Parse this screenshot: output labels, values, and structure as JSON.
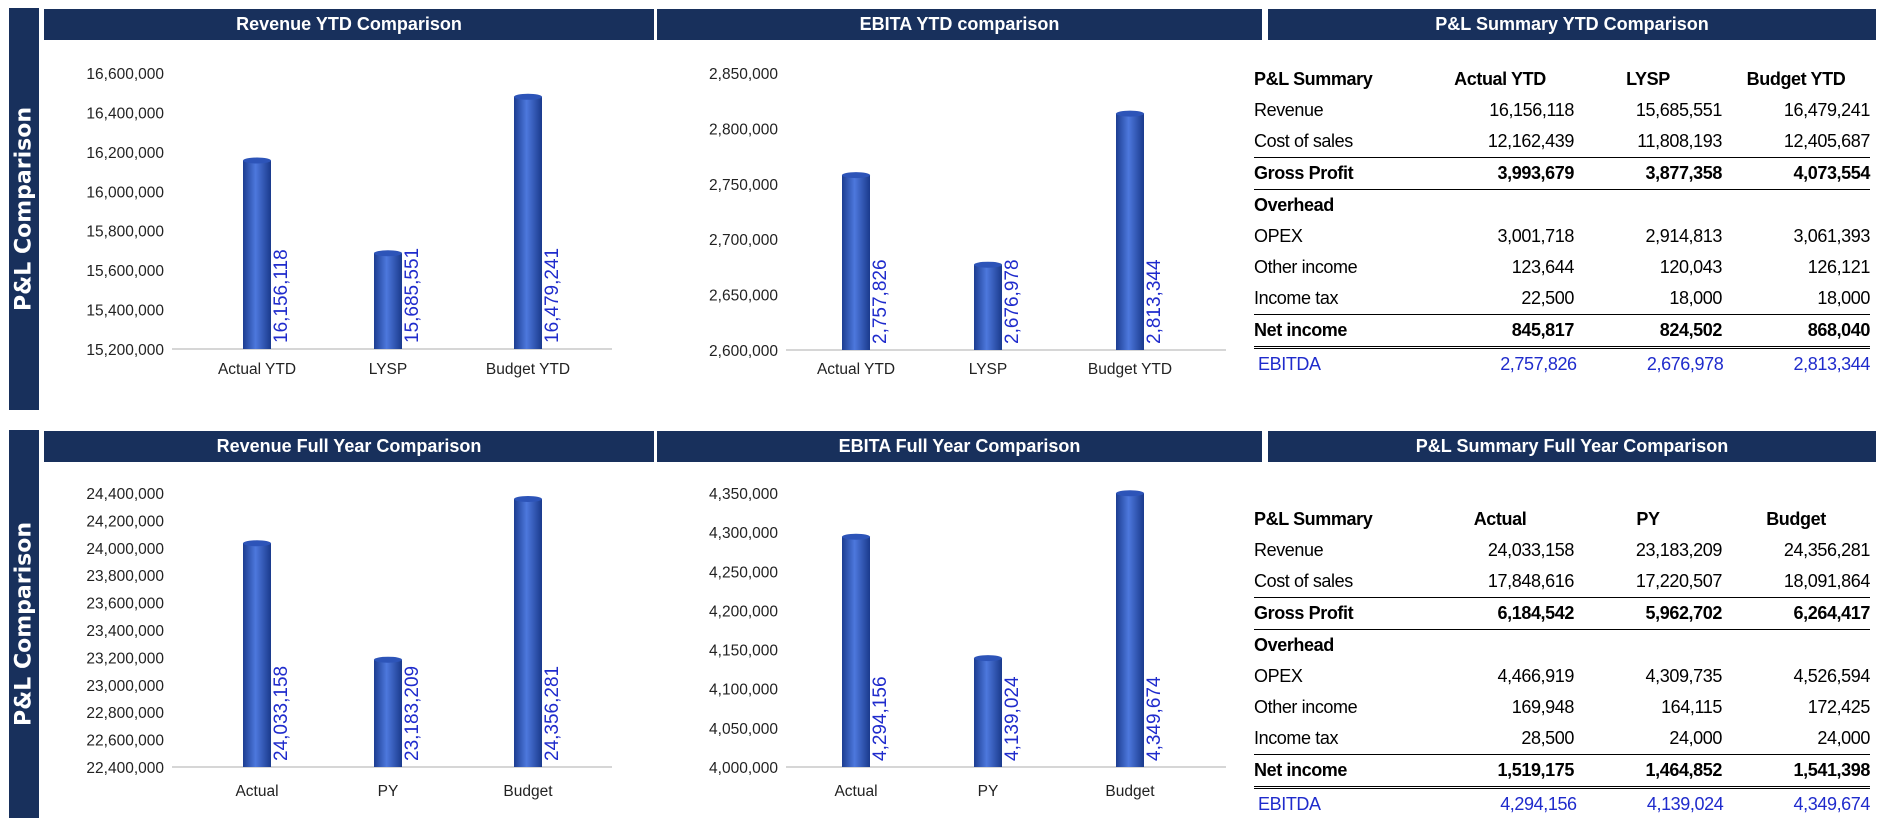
{
  "side_labels": [
    "P&L Comparison",
    "P&L Comparison"
  ],
  "colors": {
    "header_bg": "#18305c",
    "bar": "#3a62c7",
    "bar_label": "#1f2bcc",
    "ebitda_row": "#1f2bcc"
  },
  "headers": {
    "rev_ytd": "Revenue YTD Comparison",
    "ebita_ytd": "EBITA YTD comparison",
    "pl_ytd": "P&L Summary  YTD Comparison",
    "rev_fy": "Revenue Full Year Comparison",
    "ebita_fy": "EBITA Full Year Comparison",
    "pl_fy": "P&L Summary  Full Year Comparison"
  },
  "chart_data": [
    {
      "type": "bar",
      "title": "Revenue YTD Comparison",
      "categories": [
        "Actual YTD",
        "LYSP",
        "Budget YTD"
      ],
      "values": [
        16156118,
        15685551,
        16479241
      ],
      "labels": [
        "16,156,118",
        "15,685,551",
        "16,479,241"
      ],
      "ylim": [
        15200000,
        16600000
      ],
      "yticks": [
        "15,200,000",
        "15,400,000",
        "15,600,000",
        "15,800,000",
        "16,000,000",
        "16,200,000",
        "16,400,000",
        "16,600,000"
      ],
      "grid": false
    },
    {
      "type": "bar",
      "title": "EBITA YTD comparison",
      "categories": [
        "Actual YTD",
        "LYSP",
        "Budget YTD"
      ],
      "values": [
        2757826,
        2676978,
        2813344
      ],
      "labels": [
        "2,757,826",
        "2,676,978",
        "2,813,344"
      ],
      "ylim": [
        2600000,
        2850000
      ],
      "yticks": [
        "2,600,000",
        "2,650,000",
        "2,700,000",
        "2,750,000",
        "2,800,000",
        "2,850,000"
      ],
      "grid": false
    },
    {
      "type": "bar",
      "title": "Revenue Full Year Comparison",
      "categories": [
        "Actual",
        "PY",
        "Budget"
      ],
      "values": [
        24033158,
        23183209,
        24356281
      ],
      "labels": [
        "24,033,158",
        "23,183,209",
        "24,356,281"
      ],
      "ylim": [
        22400000,
        24400000
      ],
      "yticks": [
        "22,400,000",
        "22,600,000",
        "22,800,000",
        "23,000,000",
        "23,200,000",
        "23,400,000",
        "23,600,000",
        "23,800,000",
        "24,000,000",
        "24,200,000",
        "24,400,000"
      ],
      "grid": false
    },
    {
      "type": "bar",
      "title": "EBITA Full Year Comparison",
      "categories": [
        "Actual",
        "PY",
        "Budget"
      ],
      "values": [
        4294156,
        4139024,
        4349674
      ],
      "labels": [
        "4,294,156",
        "4,139,024",
        "4,349,674"
      ],
      "ylim": [
        4000000,
        4350000
      ],
      "yticks": [
        "4,000,000",
        "4,050,000",
        "4,100,000",
        "4,150,000",
        "4,200,000",
        "4,250,000",
        "4,300,000",
        "4,350,000"
      ],
      "grid": false
    }
  ],
  "pl_ytd": {
    "columns": [
      "P&L Summary",
      "Actual YTD",
      "LYSP",
      "Budget YTD"
    ],
    "rows": [
      {
        "label": "Revenue",
        "values": [
          "16,156,118",
          "15,685,551",
          "16,479,241"
        ],
        "style": ""
      },
      {
        "label": "Cost of sales",
        "values": [
          "12,162,439",
          "11,808,193",
          "12,405,687"
        ],
        "style": ""
      },
      {
        "label": "Gross Profit",
        "values": [
          "3,993,679",
          "3,877,358",
          "4,073,554"
        ],
        "style": "bold topline"
      },
      {
        "label": "Overhead",
        "values": [
          "",
          "",
          ""
        ],
        "style": "bold topline"
      },
      {
        "label": "OPEX",
        "values": [
          "3,001,718",
          "2,914,813",
          "3,061,393"
        ],
        "style": ""
      },
      {
        "label": "Other income",
        "values": [
          "123,644",
          "120,043",
          "126,121"
        ],
        "style": ""
      },
      {
        "label": "Income tax",
        "values": [
          "22,500",
          "18,000",
          "18,000"
        ],
        "style": ""
      },
      {
        "label": "Net income",
        "values": [
          "845,817",
          "824,502",
          "868,040"
        ],
        "style": "bold topline"
      },
      {
        "label": "EBITDA",
        "values": [
          "2,757,826",
          "2,676,978",
          "2,813,344"
        ],
        "style": "blue dbl"
      }
    ]
  },
  "pl_fy": {
    "columns": [
      "P&L Summary",
      "Actual",
      "PY",
      "Budget"
    ],
    "rows": [
      {
        "label": "Revenue",
        "values": [
          "24,033,158",
          "23,183,209",
          "24,356,281"
        ],
        "style": ""
      },
      {
        "label": "Cost of sales",
        "values": [
          "17,848,616",
          "17,220,507",
          "18,091,864"
        ],
        "style": ""
      },
      {
        "label": "Gross Profit",
        "values": [
          "6,184,542",
          "5,962,702",
          "6,264,417"
        ],
        "style": "bold topline"
      },
      {
        "label": "Overhead",
        "values": [
          "",
          "",
          ""
        ],
        "style": "bold topline"
      },
      {
        "label": "OPEX",
        "values": [
          "4,466,919",
          "4,309,735",
          "4,526,594"
        ],
        "style": ""
      },
      {
        "label": "Other income",
        "values": [
          "169,948",
          "164,115",
          "172,425"
        ],
        "style": ""
      },
      {
        "label": "Income tax",
        "values": [
          "28,500",
          "24,000",
          "24,000"
        ],
        "style": ""
      },
      {
        "label": "Net income",
        "values": [
          "1,519,175",
          "1,464,852",
          "1,541,398"
        ],
        "style": "bold topline"
      },
      {
        "label": "EBITDA",
        "values": [
          "4,294,156",
          "4,139,024",
          "4,349,674"
        ],
        "style": "blue dbl"
      }
    ]
  }
}
